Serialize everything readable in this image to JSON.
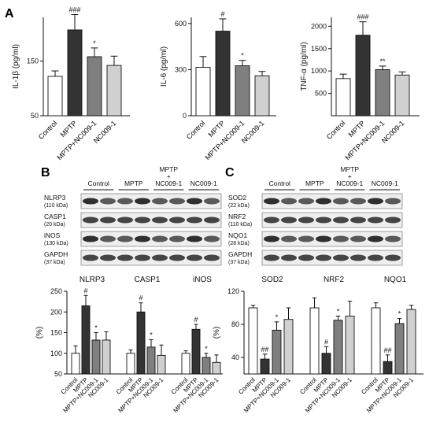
{
  "colors": {
    "Control": "#ffffff",
    "MPTP": "#333333",
    "MPTP+NC009-1": "#7f7f7f",
    "NC009-1": "#d0d0d0"
  },
  "panel_labels": {
    "A": "A",
    "B": "B",
    "C": "C"
  },
  "blot_groups": [
    "Control",
    "MPTP",
    "MPTP\n+\nNC009-1",
    "NC009-1"
  ],
  "blots_B": [
    {
      "name": "NLRP3",
      "kda": "(110 kDa)"
    },
    {
      "name": "CASP1",
      "kda": "(20 kDa)"
    },
    {
      "name": "iNOS",
      "kda": "(130 kDa)"
    },
    {
      "name": "GAPDH",
      "kda": "(37 kDa)"
    }
  ],
  "blots_C": [
    {
      "name": "SOD2",
      "kda": "(22 kDa)"
    },
    {
      "name": "NRF2",
      "kda": "(110 kDa)"
    },
    {
      "name": "NQO1",
      "kda": "(28 kDa)"
    },
    {
      "name": "GAPDH",
      "kda": "(37 kDa)"
    }
  ],
  "chart_data": [
    {
      "id": "il1b",
      "type": "bar",
      "ylabel": "IL-1β (pg/ml)",
      "ylim": [
        50,
        230
      ],
      "yticks": [
        50,
        150
      ],
      "categories": [
        "Control",
        "MPTP",
        "MPTP+NC009-1",
        "NC009-1"
      ],
      "values": [
        122,
        207,
        158,
        142
      ],
      "errors": [
        10,
        28,
        16,
        17
      ],
      "annotations": [
        "",
        "###",
        "*",
        ""
      ]
    },
    {
      "id": "il6",
      "type": "bar",
      "ylabel": "IL-6 (pg/ml)",
      "ylim": [
        0,
        640
      ],
      "yticks": [
        0,
        300,
        600
      ],
      "categories": [
        "Control",
        "MPTP",
        "MPTP+NC009-1",
        "NC009-1"
      ],
      "values": [
        315,
        550,
        325,
        260
      ],
      "errors": [
        70,
        80,
        35,
        28
      ],
      "annotations": [
        "",
        "#",
        "*",
        ""
      ]
    },
    {
      "id": "tnf",
      "type": "bar",
      "ylabel": "TNF-α (pg/ml)",
      "ylim": [
        0,
        2200
      ],
      "yticks": [
        500,
        1000,
        1500,
        2000
      ],
      "categories": [
        "Control",
        "MPTP",
        "MPTP+NC009-1",
        "NC009-1"
      ],
      "values": [
        830,
        1800,
        1030,
        910
      ],
      "errors": [
        100,
        300,
        80,
        70
      ],
      "annotations": [
        "",
        "###",
        "**",
        ""
      ]
    },
    {
      "id": "b_quant",
      "type": "bar",
      "ylabel": "(%)",
      "ylim": [
        50,
        250
      ],
      "yticks": [
        50,
        100,
        150,
        200,
        250
      ],
      "groups": [
        "NLRP3",
        "CASP1",
        "iNOS"
      ],
      "categories": [
        "Control",
        "MPTP",
        "MPTP+NC009-1",
        "NC009-1"
      ],
      "series": [
        {
          "group": "NLRP3",
          "values": [
            100,
            215,
            132,
            132
          ],
          "errors": [
            18,
            25,
            18,
            20
          ],
          "annotations": [
            "",
            "#",
            "*",
            ""
          ]
        },
        {
          "group": "CASP1",
          "values": [
            100,
            200,
            115,
            95
          ],
          "errors": [
            8,
            22,
            18,
            25
          ],
          "annotations": [
            "",
            "#",
            "*",
            ""
          ]
        },
        {
          "group": "iNOS",
          "values": [
            100,
            158,
            90,
            78
          ],
          "errors": [
            6,
            12,
            10,
            18
          ],
          "annotations": [
            "",
            "#",
            "*",
            ""
          ]
        }
      ]
    },
    {
      "id": "c_quant",
      "type": "bar",
      "ylabel": "(%)",
      "ylim": [
        20,
        120
      ],
      "yticks": [
        40,
        80,
        120
      ],
      "groups": [
        "SOD2",
        "NRF2",
        "NQO1"
      ],
      "categories": [
        "Control",
        "MPTP",
        "MPTP+NC009-1",
        "NC009-1"
      ],
      "series": [
        {
          "group": "SOD2",
          "values": [
            100,
            38,
            73,
            86
          ],
          "errors": [
            3,
            6,
            10,
            14
          ],
          "annotations": [
            "",
            "##",
            "*",
            ""
          ]
        },
        {
          "group": "NRF2",
          "values": [
            100,
            45,
            85,
            90
          ],
          "errors": [
            12,
            8,
            5,
            18
          ],
          "annotations": [
            "",
            "#",
            "*",
            ""
          ]
        },
        {
          "group": "NQO1",
          "values": [
            100,
            35,
            81,
            98
          ],
          "errors": [
            6,
            8,
            6,
            5
          ],
          "annotations": [
            "",
            "##",
            "*",
            ""
          ]
        }
      ]
    }
  ]
}
